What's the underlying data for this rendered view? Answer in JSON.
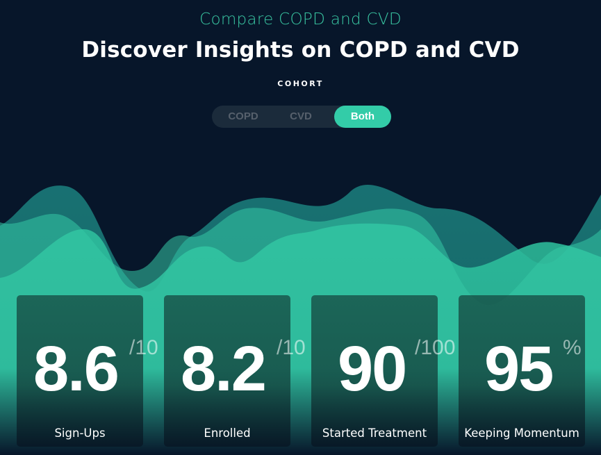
{
  "header": {
    "subtitle": "Compare COPD and CVD",
    "title": "Discover Insights on COPD and CVD",
    "cohort_label": "COHORT"
  },
  "toggle": {
    "options": [
      "COPD",
      "CVD",
      "Both"
    ],
    "selected": "Both"
  },
  "colors": {
    "background": "#07162a",
    "accent": "#33cca8",
    "subtitle": "#39c6a2"
  },
  "stats": [
    {
      "value": "8.6",
      "unit": "/10",
      "label": "Sign-Ups"
    },
    {
      "value": "8.2",
      "unit": "/10",
      "label": "Enrolled"
    },
    {
      "value": "90",
      "unit": "/100",
      "label": "Started Treatment"
    },
    {
      "value": "95",
      "unit": "%",
      "label": "Keeping Momentum"
    }
  ]
}
